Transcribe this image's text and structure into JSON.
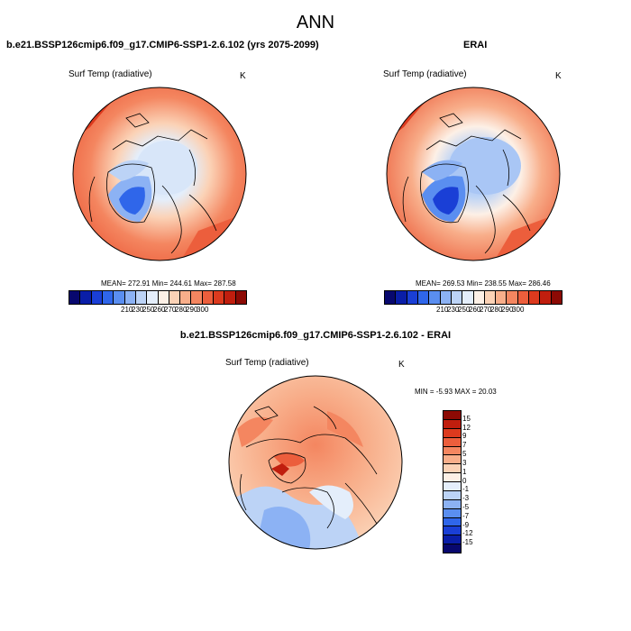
{
  "page_title": "ANN",
  "panels": [
    {
      "title": "b.e21.BSSP126cmip6.f09_g17.CMIP6-SSP1-2.6.102 (yrs 2075-2099)",
      "variable": "Surf Temp (radiative)",
      "units": "K",
      "stats": "MEAN= 272.91  Min= 244.61  Max= 287.58"
    },
    {
      "title": "ERAI",
      "variable": "Surf Temp (radiative)",
      "units": "K",
      "stats": "MEAN= 269.53  Min= 238.55  Max= 286.46"
    },
    {
      "title": "b.e21.BSSP126cmip6.f09_g17.CMIP6-SSP1-2.6.102 - ERAI",
      "variable": "Surf Temp (radiative)",
      "units": "K",
      "stats": "MIN =  -5.93 MAX =  20.03"
    }
  ],
  "colorbar_abs": {
    "labels": [
      "210",
      "230",
      "250",
      "260",
      "270",
      "280",
      "290",
      "300"
    ],
    "colors": [
      "#08086e",
      "#0a1ea8",
      "#1a3fd6",
      "#2f66ea",
      "#5a8ef0",
      "#8cb2f4",
      "#bcd3f6",
      "#e4eefb",
      "#fdf0e6",
      "#fbd2b6",
      "#f8ae8a",
      "#f48660",
      "#ec5e3c",
      "#dc3a1e",
      "#c01e0e",
      "#8c0a04"
    ]
  },
  "colorbar_diff": {
    "labels": [
      "15",
      "12",
      "9",
      "7",
      "5",
      "3",
      "1",
      "0",
      "-1",
      "-3",
      "-5",
      "-7",
      "-9",
      "-12",
      "-15"
    ],
    "colors": [
      "#8c0a04",
      "#c01e0e",
      "#dc3a1e",
      "#ec5e3c",
      "#f48660",
      "#f8ae8a",
      "#fbd2b6",
      "#fdf0e6",
      "#e4eefb",
      "#bcd3f6",
      "#8cb2f4",
      "#5a8ef0",
      "#2f66ea",
      "#1a3fd6",
      "#0a1ea8",
      "#08086e"
    ]
  }
}
